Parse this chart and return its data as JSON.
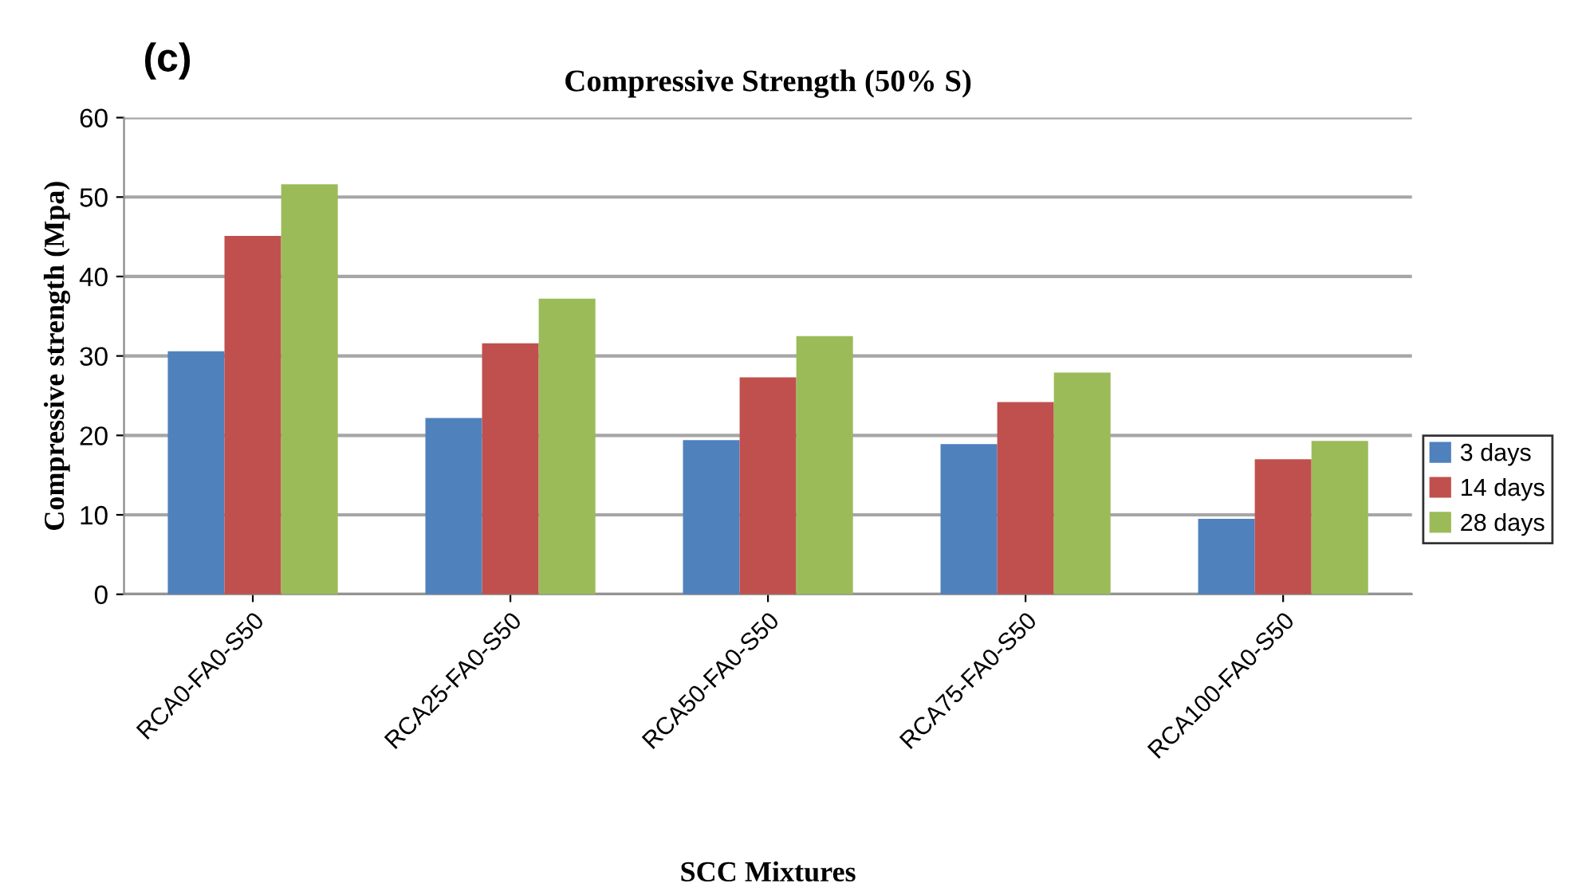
{
  "chart_data": {
    "type": "bar",
    "title": "Compressive Strength (50% S)",
    "xlabel": "SCC Mixtures",
    "ylabel": "Compressive strength (Mpa)",
    "annotations": [
      "(c)"
    ],
    "categories": [
      "RCA0-FA0-S50",
      "RCA25-FA0-S50",
      "RCA50-FA0-S50",
      "RCA75-FA0-S50",
      "RCA100-FA0-S50"
    ],
    "series": [
      {
        "name": "3 days",
        "color": "#4f81bd",
        "values": [
          30.6,
          22.2,
          19.4,
          18.9,
          9.5
        ]
      },
      {
        "name": "14 days",
        "color": "#c0504d",
        "values": [
          45.1,
          31.6,
          27.3,
          24.2,
          17.0
        ]
      },
      {
        "name": "28 days",
        "color": "#9bbb59",
        "values": [
          51.6,
          37.2,
          32.5,
          27.9,
          19.3
        ]
      }
    ],
    "ylim": [
      0,
      60
    ],
    "yticks": [
      0,
      10,
      20,
      30,
      40,
      50,
      60
    ],
    "grid": "y",
    "legend": "right"
  }
}
